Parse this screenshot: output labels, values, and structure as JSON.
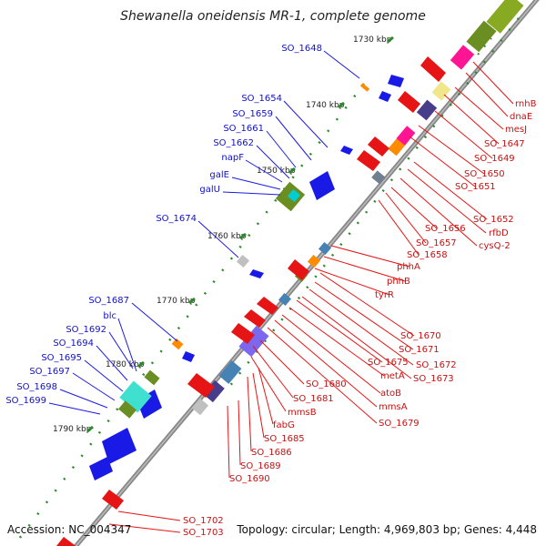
{
  "title": "Shewanella oneidensis MR-1, complete genome",
  "footer": {
    "accession": "Accession: NC_004347",
    "summary": "Topology: circular; Length: 4,969,803 bp; Genes: 4,448"
  },
  "scale_labels": [
    "1730 kbp",
    "1740 kbp",
    "1750 kbp",
    "1760 kbp",
    "1770 kbp",
    "1780 kbp",
    "1790 kbp"
  ],
  "genes_left": [
    "SO_1648",
    "SO_1654",
    "SO_1659",
    "SO_1661",
    "SO_1662",
    "napF",
    "galE",
    "galU",
    "SO_1674",
    "SO_1687",
    "blc",
    "SO_1692",
    "SO_1694",
    "SO_1695",
    "SO_1697",
    "SO_1698",
    "SO_1699"
  ],
  "genes_right": [
    "rnhB",
    "dnaE",
    "mesJ",
    "SO_1647",
    "SO_1649",
    "SO_1650",
    "SO_1651",
    "SO_1652",
    "rfbD",
    "cysQ-2",
    "SO_1656",
    "SO_1657",
    "SO_1658",
    "phhA",
    "phhB",
    "tyrR",
    "SO_1670",
    "SO_1671",
    "SO_1672",
    "SO_1673",
    "SO_1675",
    "metA",
    "atoB",
    "mmsA",
    "SO_1679",
    "SO_1680",
    "SO_1681",
    "mmsB",
    "fabG",
    "SO_1685",
    "SO_1686",
    "SO_1689",
    "SO_1690",
    "SO_1702",
    "SO_1703"
  ],
  "colors": {
    "backbone": "#8a8a8a",
    "forward_cds": "#1a1ae6",
    "reverse_cds": "#e61414",
    "tick": "#2a8a2a",
    "label_blue": "#1010c8",
    "label_red": "#c81010"
  }
}
